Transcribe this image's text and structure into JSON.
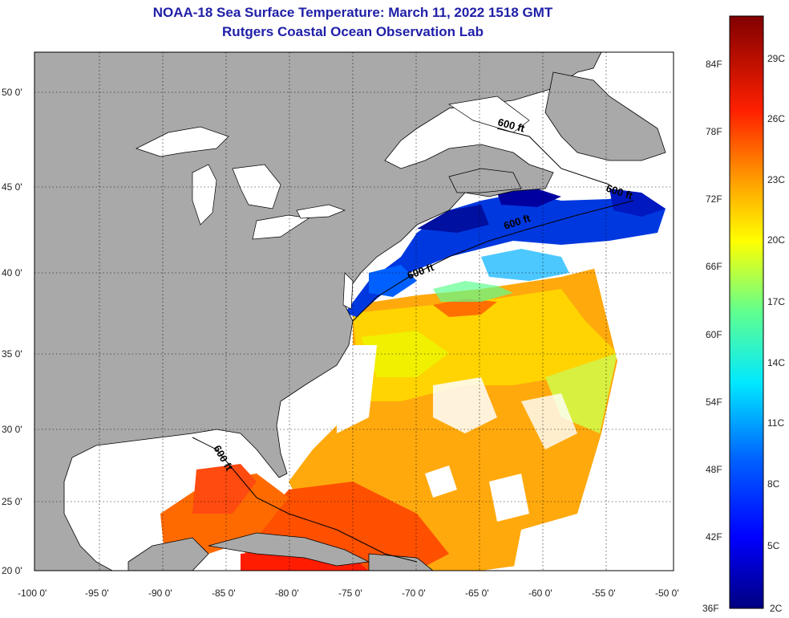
{
  "title": "NOAA-18 Sea Surface Temperature:  March 11, 2022 1518 GMT",
  "subtitle": "Rutgers Coastal Ocean Observation Lab",
  "lat_labels": [
    {
      "text": "50 0'",
      "lat": 50
    },
    {
      "text": "45 0'",
      "lat": 45
    },
    {
      "text": "40 0'",
      "lat": 40
    },
    {
      "text": "35 0'",
      "lat": 35
    },
    {
      "text": "30 0'",
      "lat": 30
    },
    {
      "text": "25 0'",
      "lat": 25
    },
    {
      "text": "20 0'",
      "lat": 20
    }
  ],
  "lon_labels": [
    {
      "text": "-100 0'",
      "lon": -100
    },
    {
      "text": "-95 0'",
      "lon": -95
    },
    {
      "text": "-90 0'",
      "lon": -90
    },
    {
      "text": "-85 0'",
      "lon": -85
    },
    {
      "text": "-80 0'",
      "lon": -80
    },
    {
      "text": "-75 0'",
      "lon": -75
    },
    {
      "text": "-70 0'",
      "lon": -70
    },
    {
      "text": "-65 0'",
      "lon": -65
    },
    {
      "text": "-60 0'",
      "lon": -60
    },
    {
      "text": "-55 0'",
      "lon": -55
    },
    {
      "text": "-50 0'",
      "lon": -50
    }
  ],
  "depth_labels": [
    "600 ft",
    "600 ft",
    "600 ft",
    "600 ft",
    "600 ft"
  ],
  "colorbar": {
    "f_labels": [
      "84F",
      "78F",
      "72F",
      "66F",
      "60F",
      "54F",
      "48F",
      "42F",
      "36F"
    ],
    "c_labels": [
      "29C",
      "26C",
      "23C",
      "20C",
      "17C",
      "14C",
      "11C",
      "8C",
      "5C",
      "2C"
    ]
  },
  "colors": {
    "title": "#1f1fa8",
    "land": "#a9a9a9",
    "ocean": "#ffffff"
  }
}
